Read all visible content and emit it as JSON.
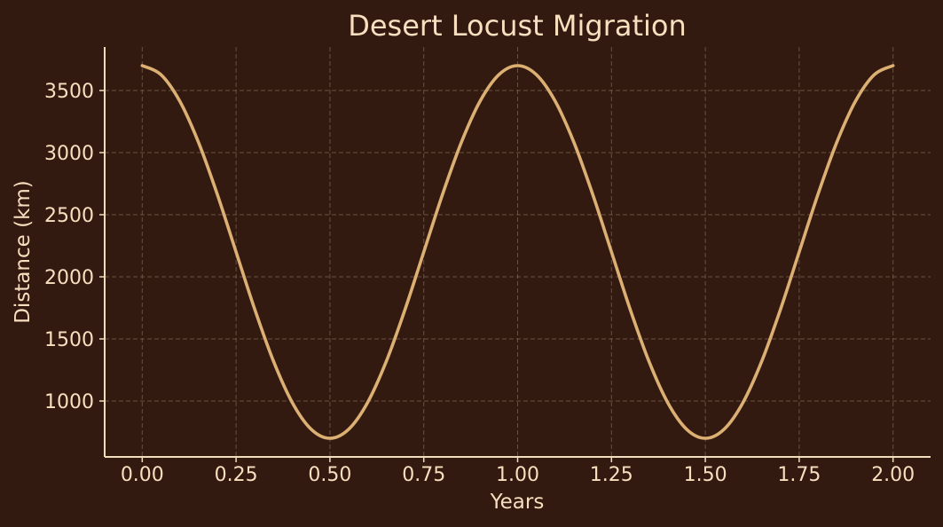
{
  "chart_data": {
    "type": "line",
    "title": "Desert Locust Migration",
    "xlabel": "Years",
    "ylabel": "Distance (km)",
    "xlim": [
      -0.1,
      2.1
    ],
    "ylim": [
      550,
      3850
    ],
    "xticks": [
      0.0,
      0.25,
      0.5,
      0.75,
      1.0,
      1.25,
      1.5,
      1.75,
      2.0
    ],
    "xtick_labels": [
      "0.00",
      "0.25",
      "0.50",
      "0.75",
      "1.00",
      "1.25",
      "1.50",
      "1.75",
      "2.00"
    ],
    "yticks": [
      1000,
      1500,
      2000,
      2500,
      3000,
      3500
    ],
    "ytick_labels": [
      "1000",
      "1500",
      "2000",
      "2500",
      "3000",
      "3500"
    ],
    "grid": true,
    "legend": "none",
    "series": [
      {
        "color": "#dcaf72",
        "x": [
          0.0,
          0.05,
          0.1,
          0.15,
          0.2,
          0.25,
          0.3,
          0.35,
          0.4,
          0.45,
          0.5,
          0.55,
          0.6,
          0.65,
          0.7,
          0.75,
          0.8,
          0.85,
          0.9,
          0.95,
          1.0,
          1.05,
          1.1,
          1.15,
          1.2,
          1.25,
          1.3,
          1.35,
          1.4,
          1.45,
          1.5,
          1.55,
          1.6,
          1.65,
          1.7,
          1.75,
          1.8,
          1.85,
          1.9,
          1.95,
          2.0
        ],
        "y": [
          3700,
          3627,
          3414,
          3082,
          2664,
          2200,
          1736,
          1318,
          986,
          773,
          700,
          773,
          986,
          1318,
          1736,
          2200,
          2664,
          3082,
          3414,
          3627,
          3700,
          3627,
          3414,
          3082,
          2664,
          2200,
          1736,
          1318,
          986,
          773,
          700,
          773,
          986,
          1318,
          1736,
          2200,
          2664,
          3082,
          3414,
          3627,
          3700
        ]
      }
    ]
  },
  "colors": {
    "background": "#321a10",
    "text": "#f7dfbf",
    "axis": "#f1dcbc",
    "grid": "#7a6450",
    "line": "#dcaf72"
  }
}
